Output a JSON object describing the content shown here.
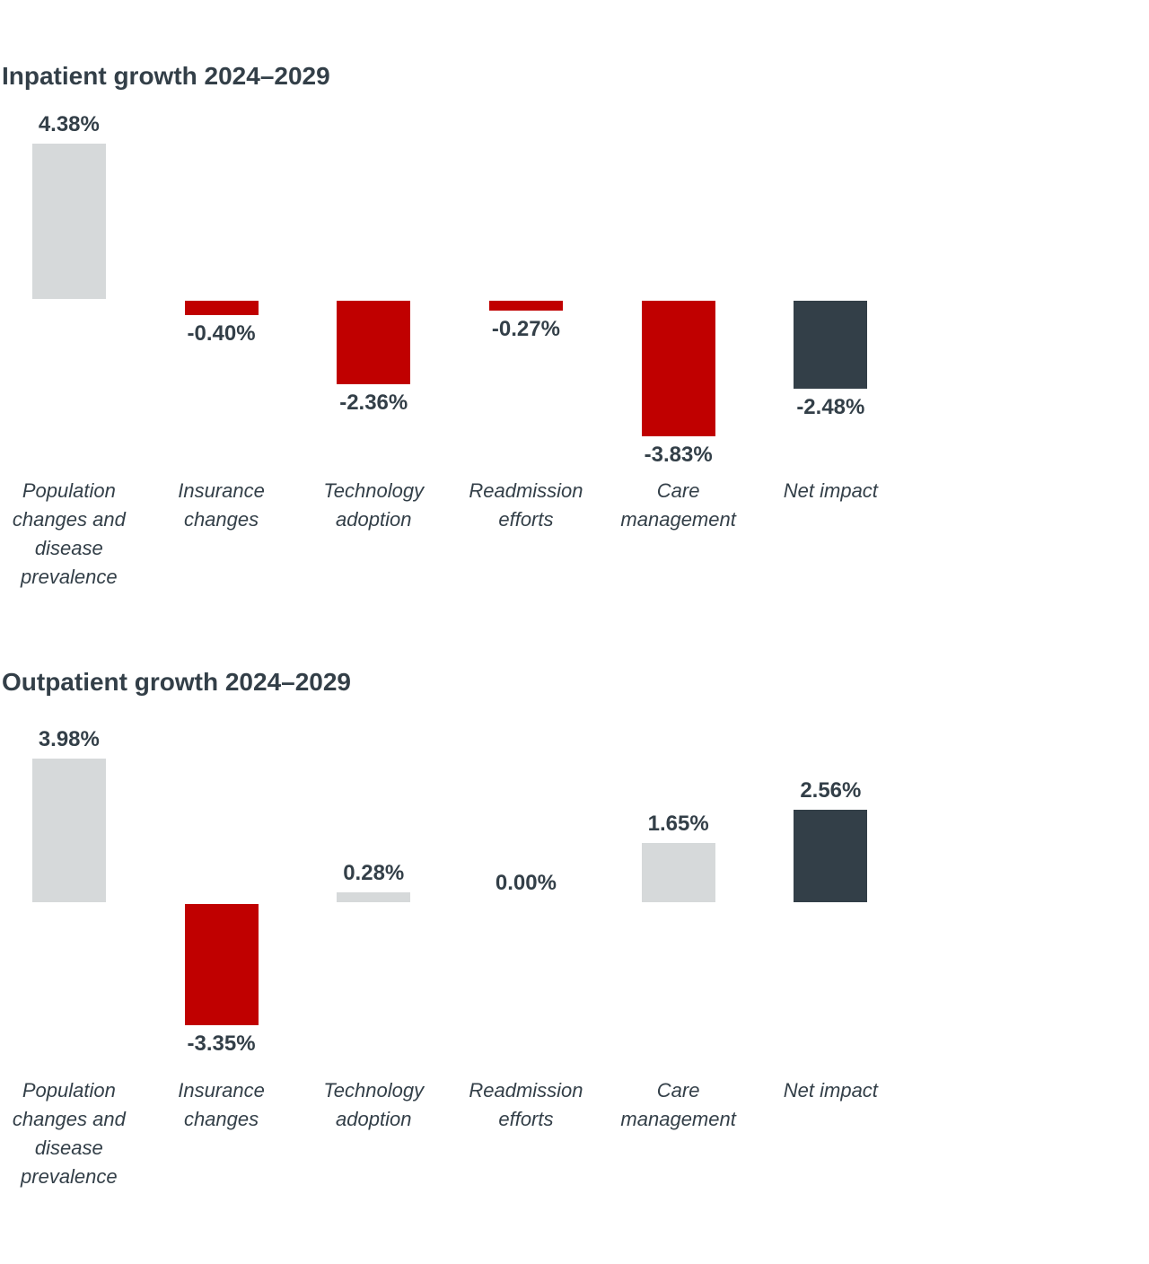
{
  "palette": {
    "background": "#ffffff",
    "text": "#333f48",
    "increase_bar": "#d6d9da",
    "decrease_bar": "#c00000",
    "net_bar": "#333f48"
  },
  "chart_data": [
    {
      "type": "bar",
      "variant": "waterfall-contribution",
      "title": "Inpatient growth 2024–2029",
      "xlabel": "",
      "ylabel": "",
      "unit": "%",
      "grid": false,
      "legend": false,
      "ylim": [
        -3.83,
        4.38
      ],
      "categories": [
        "Population changes and disease prevalence",
        "Insurance changes",
        "Technology adoption",
        "Readmission efforts",
        "Care management",
        "Net impact"
      ],
      "category_lines": [
        [
          "Population",
          "changes and",
          "disease",
          "prevalence"
        ],
        [
          "Insurance",
          "changes"
        ],
        [
          "Technology",
          "adoption"
        ],
        [
          "Readmission",
          "efforts"
        ],
        [
          "Care",
          "management"
        ],
        [
          "Net impact"
        ]
      ],
      "values": [
        4.38,
        -0.4,
        -2.36,
        -0.27,
        -3.83,
        -2.48
      ],
      "value_labels": [
        "4.38%",
        "-0.40%",
        "-2.36%",
        "-0.27%",
        "-3.83%",
        "-2.48%"
      ],
      "bar_roles": [
        "increase",
        "decrease",
        "decrease",
        "decrease",
        "decrease",
        "net"
      ]
    },
    {
      "type": "bar",
      "variant": "waterfall-contribution",
      "title": "Outpatient growth 2024–2029",
      "xlabel": "",
      "ylabel": "",
      "unit": "%",
      "grid": false,
      "legend": false,
      "ylim": [
        -3.35,
        3.98
      ],
      "categories": [
        "Population changes and disease prevalence",
        "Insurance changes",
        "Technology adoption",
        "Readmission efforts",
        "Care management",
        "Net impact"
      ],
      "category_lines": [
        [
          "Population",
          "changes and",
          "disease",
          "prevalence"
        ],
        [
          "Insurance",
          "changes"
        ],
        [
          "Technology",
          "adoption"
        ],
        [
          "Readmission",
          "efforts"
        ],
        [
          "Care",
          "management"
        ],
        [
          "Net impact"
        ]
      ],
      "values": [
        3.98,
        -3.35,
        0.28,
        0.0,
        1.65,
        2.56
      ],
      "value_labels": [
        "3.98%",
        "-3.35%",
        "0.28%",
        "0.00%",
        "1.65%",
        "2.56%"
      ],
      "bar_roles": [
        "increase",
        "decrease",
        "increase",
        "increase",
        "increase",
        "net"
      ]
    }
  ]
}
